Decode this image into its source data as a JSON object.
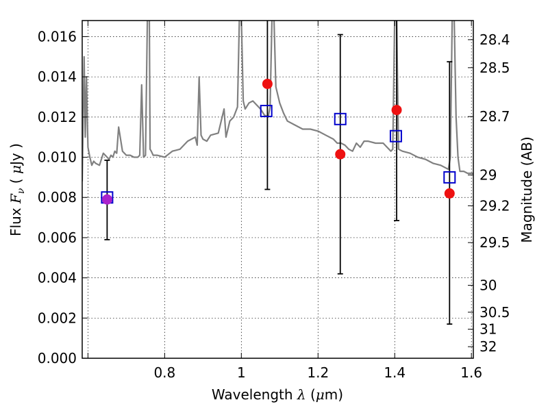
{
  "chart_data": {
    "type": "scatter",
    "title": "",
    "xlabel": {
      "prefix": "Wavelength",
      "symbol": "λ",
      "unit_open": " (",
      "unit_mu": "μ",
      "unit_rest": "m)"
    },
    "ylabel": {
      "prefix": "Flux",
      "symbol_F": "F",
      "symbol_sub": "ν",
      "unit_open": "( ",
      "unit_mu": "μ",
      "unit_rest": "Jy )"
    },
    "y2label": "Magnitude (AB)",
    "xlim": [
      0.585,
      1.605
    ],
    "ylim": [
      0.0,
      0.0168
    ],
    "grid": true,
    "x_ticks": [
      {
        "value": 0.6,
        "label": ""
      },
      {
        "value": 0.8,
        "label": "0.8"
      },
      {
        "value": 1.0,
        "label": "1"
      },
      {
        "value": 1.2,
        "label": "1.2"
      },
      {
        "value": 1.4,
        "label": "1.4"
      },
      {
        "value": 1.6,
        "label": "1.6"
      }
    ],
    "y_ticks": [
      {
        "value": 0.0,
        "label": "0.000"
      },
      {
        "value": 0.002,
        "label": "0.002"
      },
      {
        "value": 0.004,
        "label": "0.004"
      },
      {
        "value": 0.006,
        "label": "0.006"
      },
      {
        "value": 0.008,
        "label": "0.008"
      },
      {
        "value": 0.01,
        "label": "0.010"
      },
      {
        "value": 0.012,
        "label": "0.012"
      },
      {
        "value": 0.014,
        "label": "0.014"
      },
      {
        "value": 0.016,
        "label": "0.016"
      }
    ],
    "magnitude_ticks": [
      {
        "mag": 28.4,
        "label": "28.4"
      },
      {
        "mag": 28.5,
        "label": "28.5"
      },
      {
        "mag": 28.7,
        "label": "28.7"
      },
      {
        "mag": 29,
        "label": "29"
      },
      {
        "mag": 29.2,
        "label": "29.2"
      },
      {
        "mag": 29.5,
        "label": "29.5"
      },
      {
        "mag": 30,
        "label": "30"
      },
      {
        "mag": 30.5,
        "label": "30.5"
      },
      {
        "mag": 31,
        "label": "31"
      },
      {
        "mag": 32,
        "label": "32"
      }
    ],
    "series": [
      {
        "kind": "spectrum",
        "color": "#808080",
        "x": [
          0.585,
          0.59,
          0.593,
          0.596,
          0.6,
          0.605,
          0.61,
          0.615,
          0.62,
          0.63,
          0.64,
          0.65,
          0.655,
          0.66,
          0.665,
          0.67,
          0.675,
          0.68,
          0.69,
          0.7,
          0.71,
          0.72,
          0.73,
          0.735,
          0.74,
          0.745,
          0.75,
          0.755,
          0.76,
          0.762,
          0.765,
          0.77,
          0.78,
          0.8,
          0.82,
          0.84,
          0.86,
          0.87,
          0.88,
          0.885,
          0.89,
          0.895,
          0.9,
          0.91,
          0.92,
          0.94,
          0.95,
          0.955,
          0.96,
          0.97,
          0.98,
          0.99,
          0.995,
          1.0,
          1.005,
          1.01,
          1.02,
          1.03,
          1.04,
          1.05,
          1.06,
          1.07,
          1.075,
          1.08,
          1.085,
          1.09,
          1.1,
          1.11,
          1.12,
          1.14,
          1.16,
          1.18,
          1.2,
          1.22,
          1.24,
          1.25,
          1.26,
          1.27,
          1.28,
          1.29,
          1.3,
          1.31,
          1.32,
          1.33,
          1.35,
          1.37,
          1.38,
          1.39,
          1.395,
          1.4,
          1.405,
          1.41,
          1.42,
          1.44,
          1.46,
          1.48,
          1.5,
          1.52,
          1.54,
          1.545,
          1.55,
          1.555,
          1.56,
          1.565,
          1.57,
          1.58,
          1.59,
          1.6,
          1.605
        ],
        "y": [
          0.0088,
          0.015,
          0.011,
          0.014,
          0.0105,
          0.01,
          0.0096,
          0.0098,
          0.0097,
          0.0096,
          0.0102,
          0.01,
          0.0099,
          0.0101,
          0.01,
          0.0103,
          0.0102,
          0.0115,
          0.0103,
          0.0101,
          0.0101,
          0.01,
          0.01,
          0.0101,
          0.0136,
          0.01,
          0.0101,
          0.017,
          0.017,
          0.0104,
          0.0103,
          0.0101,
          0.0101,
          0.01,
          0.0103,
          0.0104,
          0.0108,
          0.0109,
          0.011,
          0.0106,
          0.014,
          0.0111,
          0.0109,
          0.0108,
          0.0111,
          0.0112,
          0.012,
          0.0124,
          0.011,
          0.0118,
          0.012,
          0.0125,
          0.017,
          0.017,
          0.0128,
          0.0124,
          0.0127,
          0.0128,
          0.0126,
          0.0124,
          0.0121,
          0.012,
          0.0125,
          0.017,
          0.017,
          0.0135,
          0.0127,
          0.0122,
          0.0118,
          0.0116,
          0.0114,
          0.0114,
          0.0113,
          0.0111,
          0.0109,
          0.0107,
          0.0107,
          0.0106,
          0.0104,
          0.0103,
          0.0107,
          0.0105,
          0.0108,
          0.0108,
          0.0107,
          0.0107,
          0.0105,
          0.0103,
          0.0104,
          0.017,
          0.017,
          0.0104,
          0.0103,
          0.0102,
          0.01,
          0.0099,
          0.0097,
          0.0096,
          0.0094,
          0.01,
          0.017,
          0.017,
          0.012,
          0.01,
          0.0093,
          0.0093,
          0.0092,
          0.0092,
          0.0092
        ]
      },
      {
        "kind": "errorbar",
        "color": "#000000",
        "points": [
          {
            "x": 0.65,
            "low": 0.0059,
            "high": 0.00985
          },
          {
            "x": 1.068,
            "low": 0.0084,
            "high": 0.017
          },
          {
            "x": 1.258,
            "low": 0.0042,
            "high": 0.0161
          },
          {
            "x": 1.405,
            "low": 0.00685,
            "high": 0.017
          },
          {
            "x": 1.543,
            "low": 0.0017,
            "high": 0.01475
          }
        ]
      },
      {
        "kind": "open-square",
        "color": "#0000cc",
        "points": [
          {
            "x": 0.65,
            "y": 0.008
          },
          {
            "x": 1.065,
            "y": 0.0123
          },
          {
            "x": 1.258,
            "y": 0.0119
          },
          {
            "x": 1.403,
            "y": 0.01105
          },
          {
            "x": 1.543,
            "y": 0.009
          }
        ]
      },
      {
        "kind": "filled-circle",
        "color": "#ee1111",
        "points": [
          {
            "x": 1.068,
            "y": 0.01365
          },
          {
            "x": 1.258,
            "y": 0.01015
          },
          {
            "x": 1.405,
            "y": 0.01235
          },
          {
            "x": 1.543,
            "y": 0.0082
          }
        ]
      },
      {
        "kind": "filled-circle",
        "color": "#aa22cc",
        "points": [
          {
            "x": 0.65,
            "y": 0.0079
          }
        ]
      }
    ]
  }
}
